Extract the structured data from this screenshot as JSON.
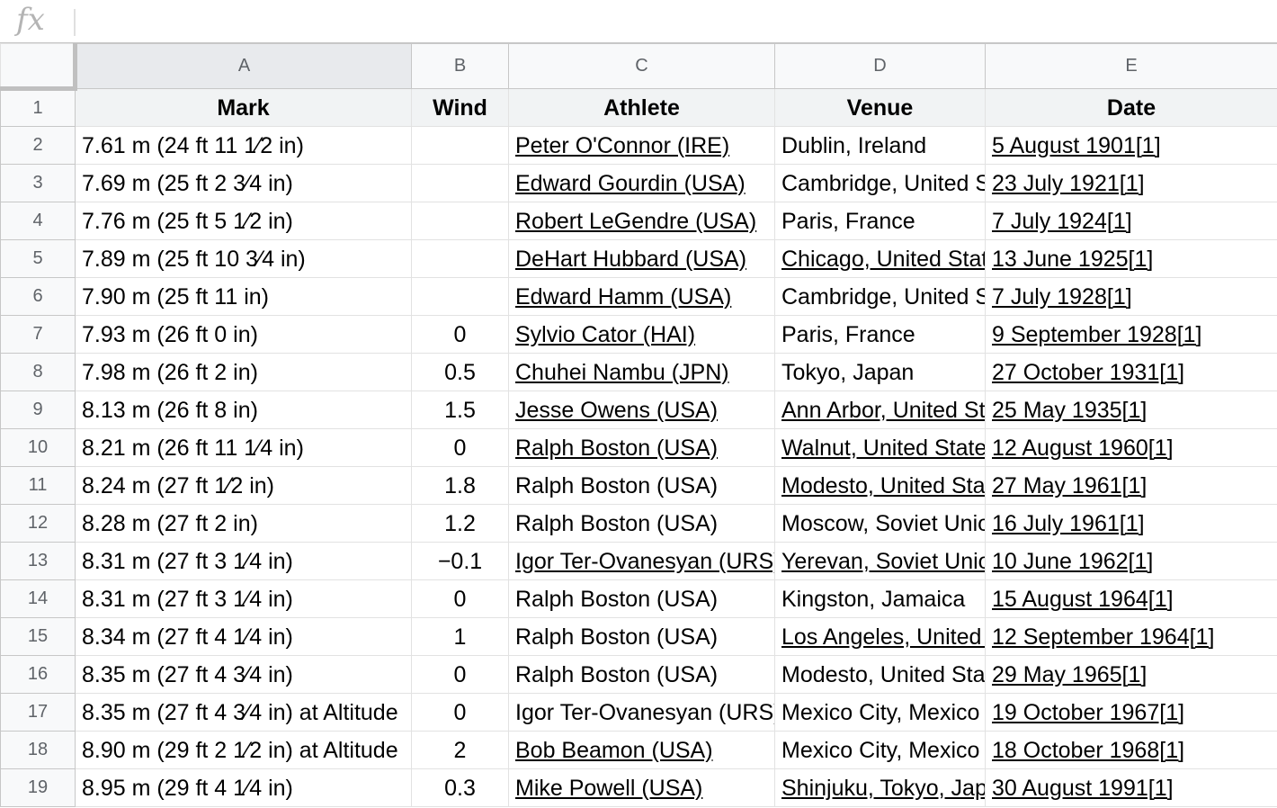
{
  "formula_bar": {
    "fx_label": "fx",
    "value": ""
  },
  "columns": [
    "A",
    "B",
    "C",
    "D",
    "E"
  ],
  "rows": [
    {
      "n": "1",
      "mark": "Mark",
      "wind": "Wind",
      "athlete": "Athlete",
      "venue": "Venue",
      "date": "Date",
      "header": true
    },
    {
      "n": "2",
      "mark": "7.61 m (24 ft 11 1⁄2 in)",
      "wind": "",
      "athlete": "Peter O'Connor (IRE)",
      "venue": "Dublin, Ireland",
      "date": "5 August 1901[1]",
      "athlete_link": true,
      "venue_link": false
    },
    {
      "n": "3",
      "mark": "7.69 m (25 ft 2 3⁄4 in)",
      "wind": "",
      "athlete": "Edward Gourdin (USA)",
      "venue": "Cambridge, United States",
      "date": "23 July 1921[1]",
      "athlete_link": true,
      "venue_link": false
    },
    {
      "n": "4",
      "mark": "7.76 m (25 ft 5 1⁄2 in)",
      "wind": "",
      "athlete": "Robert LeGendre (USA)",
      "venue": "Paris, France",
      "date": "7 July 1924[1]",
      "athlete_link": true,
      "venue_link": false
    },
    {
      "n": "5",
      "mark": "7.89 m (25 ft 10 3⁄4 in)",
      "wind": "",
      "athlete": "DeHart Hubbard (USA)",
      "venue": "Chicago, United States",
      "date": "13 June 1925[1]",
      "athlete_link": true,
      "venue_link": true
    },
    {
      "n": "6",
      "mark": "7.90 m (25 ft 11 in)",
      "wind": "",
      "athlete": "Edward Hamm (USA)",
      "venue": "Cambridge, United States",
      "date": "7 July 1928[1]",
      "athlete_link": true,
      "venue_link": false
    },
    {
      "n": "7",
      "mark": "7.93 m (26 ft 0 in)",
      "wind": "0",
      "athlete": "Sylvio Cator (HAI)",
      "venue": "Paris, France",
      "date": "9 September 1928[1]",
      "athlete_link": true,
      "venue_link": false
    },
    {
      "n": "8",
      "mark": "7.98 m (26 ft 2 in)",
      "wind": "0.5",
      "athlete": "Chuhei Nambu (JPN)",
      "venue": "Tokyo, Japan",
      "date": "27 October 1931[1]",
      "athlete_link": true,
      "venue_link": false
    },
    {
      "n": "9",
      "mark": "8.13 m (26 ft 8 in)",
      "wind": "1.5",
      "athlete": "Jesse Owens (USA)",
      "venue": "Ann Arbor, United States",
      "date": "25 May 1935[1]",
      "athlete_link": true,
      "venue_link": true
    },
    {
      "n": "10",
      "mark": "8.21 m (26 ft 11 1⁄4 in)",
      "wind": "0",
      "athlete": "Ralph Boston (USA)",
      "venue": "Walnut, United States",
      "date": "12 August 1960[1]",
      "athlete_link": true,
      "venue_link": true
    },
    {
      "n": "11",
      "mark": "8.24 m (27 ft 1⁄2 in)",
      "wind": "1.8",
      "athlete": "Ralph Boston (USA)",
      "venue": "Modesto, United States",
      "date": "27 May 1961[1]",
      "athlete_link": false,
      "venue_link": true
    },
    {
      "n": "12",
      "mark": "8.28 m (27 ft 2 in)",
      "wind": "1.2",
      "athlete": "Ralph Boston (USA)",
      "venue": "Moscow, Soviet Union",
      "date": "16 July 1961[1]",
      "athlete_link": false,
      "venue_link": false
    },
    {
      "n": "13",
      "mark": "8.31 m (27 ft 3 1⁄4 in)",
      "wind": "−0.1",
      "athlete": "Igor Ter-Ovanesyan (URS)",
      "venue": "Yerevan, Soviet Union",
      "date": "10 June 1962[1]",
      "athlete_link": true,
      "venue_link": true
    },
    {
      "n": "14",
      "mark": "8.31 m (27 ft 3 1⁄4 in)",
      "wind": "0",
      "athlete": "Ralph Boston (USA)",
      "venue": "Kingston, Jamaica",
      "date": "15 August 1964[1]",
      "athlete_link": false,
      "venue_link": false
    },
    {
      "n": "15",
      "mark": "8.34 m (27 ft 4 1⁄4 in)",
      "wind": "1",
      "athlete": "Ralph Boston (USA)",
      "venue": "Los Angeles, United States",
      "date": "12 September 1964[1]",
      "athlete_link": false,
      "venue_link": true
    },
    {
      "n": "16",
      "mark": "8.35 m (27 ft 4 3⁄4 in)",
      "wind": "0",
      "athlete": "Ralph Boston (USA)",
      "venue": "Modesto, United States",
      "date": "29 May 1965[1]",
      "athlete_link": false,
      "venue_link": false
    },
    {
      "n": "17",
      "mark": "8.35 m (27 ft 4 3⁄4 in) at Altitude",
      "wind": "0",
      "athlete": "Igor Ter-Ovanesyan (URS)",
      "venue": "Mexico City, Mexico",
      "date": "19 October 1967[1]",
      "athlete_link": false,
      "venue_link": false
    },
    {
      "n": "18",
      "mark": "8.90 m (29 ft 2 1⁄2 in) at Altitude",
      "wind": "2",
      "athlete": "Bob Beamon (USA)",
      "venue": "Mexico City, Mexico",
      "date": "18 October 1968[1]",
      "athlete_link": true,
      "venue_link": false
    },
    {
      "n": "19",
      "mark": "8.95 m (29 ft 4 1⁄4 in)",
      "wind": "0.3",
      "athlete": "Mike Powell (USA)",
      "venue": "Shinjuku, Tokyo, Japan",
      "date": "30 August 1991[1]",
      "athlete_link": true,
      "venue_link": true
    }
  ]
}
